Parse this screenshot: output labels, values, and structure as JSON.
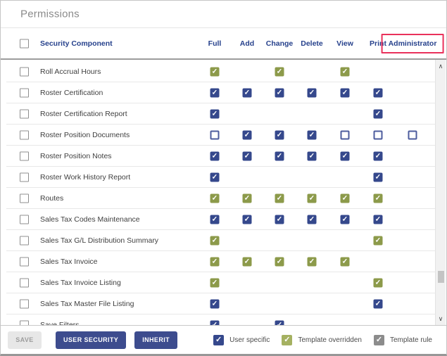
{
  "title": "Permissions",
  "colors": {
    "user_specific_navy": "#35488C",
    "template_overridden_green": "#8C9A4A",
    "legend_green": "#A5B161",
    "template_rule_gray": "#8C8C8C",
    "header_text_navy": "#26418C",
    "button_navy": "#3D4C8E",
    "highlight_red": "#E9315B"
  },
  "table": {
    "component_column_label": "Security Component",
    "columns": [
      {
        "key": "full",
        "label": "Full"
      },
      {
        "key": "add",
        "label": "Add"
      },
      {
        "key": "change",
        "label": "Change"
      },
      {
        "key": "delete",
        "label": "Delete"
      },
      {
        "key": "view",
        "label": "View"
      },
      {
        "key": "print",
        "label": "Print"
      },
      {
        "key": "administrator",
        "label": "Administrator",
        "highlighted": true
      }
    ],
    "rows": [
      {
        "label": "Roll Accrual Hours",
        "cells": {
          "full": "overridden",
          "change": "overridden",
          "view": "overridden"
        }
      },
      {
        "label": "Roster Certification",
        "cells": {
          "full": "user",
          "add": "user",
          "change": "user",
          "delete": "user",
          "view": "user",
          "print": "user"
        }
      },
      {
        "label": "Roster Certification Report",
        "cells": {
          "full": "user",
          "print": "user"
        }
      },
      {
        "label": "Roster Position Documents",
        "cells": {
          "full": "unchecked",
          "add": "user",
          "change": "user",
          "delete": "user",
          "view": "unchecked",
          "print": "unchecked",
          "administrator": "unchecked"
        }
      },
      {
        "label": "Roster Position Notes",
        "cells": {
          "full": "user",
          "add": "user",
          "change": "user",
          "delete": "user",
          "view": "user",
          "print": "user"
        }
      },
      {
        "label": "Roster Work History Report",
        "cells": {
          "full": "user",
          "print": "user"
        }
      },
      {
        "label": "Routes",
        "cells": {
          "full": "overridden",
          "add": "overridden",
          "change": "overridden",
          "delete": "overridden",
          "view": "overridden",
          "print": "overridden"
        }
      },
      {
        "label": "Sales Tax Codes Maintenance",
        "cells": {
          "full": "user",
          "add": "user",
          "change": "user",
          "delete": "user",
          "view": "user",
          "print": "user"
        }
      },
      {
        "label": "Sales Tax G/L Distribution Summary",
        "cells": {
          "full": "overridden",
          "print": "overridden"
        }
      },
      {
        "label": "Sales Tax Invoice",
        "cells": {
          "full": "overridden",
          "add": "overridden",
          "change": "overridden",
          "delete": "overridden",
          "view": "overridden"
        }
      },
      {
        "label": "Sales Tax Invoice Listing",
        "cells": {
          "full": "overridden",
          "print": "overridden"
        }
      },
      {
        "label": "Sales Tax Master File Listing",
        "cells": {
          "full": "user",
          "print": "user"
        }
      },
      {
        "label": "Save Filters",
        "cells": {
          "full": "user",
          "change": "user"
        }
      }
    ]
  },
  "footer": {
    "buttons": {
      "save": "SAVE",
      "user_security": "USER SECURITY",
      "inherit": "INHERIT"
    },
    "legend": [
      {
        "state": "user",
        "label": "User specific"
      },
      {
        "state": "overridden",
        "label": "Template overridden"
      },
      {
        "state": "template",
        "label": "Template rule"
      }
    ]
  },
  "scrollbar": {
    "up_icon": "∧",
    "down_icon": "∨"
  }
}
